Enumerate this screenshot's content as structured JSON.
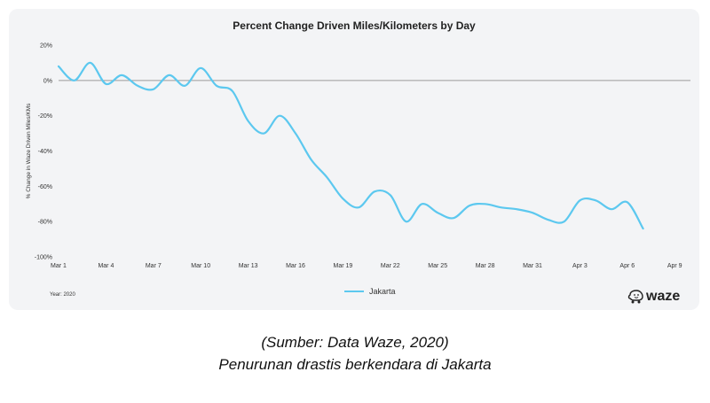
{
  "chart_data": {
    "type": "line",
    "title": "Percent Change Driven Miles/Kilometers by Day",
    "ylabel": "% Change in Waze Driven Miles/KMs",
    "xlabel": "",
    "ylim": [
      -100,
      20
    ],
    "yticks": [
      "20%",
      "0%",
      "-20%",
      "-40%",
      "-60%",
      "-80%",
      "-100%"
    ],
    "ytick_values": [
      20,
      0,
      -20,
      -40,
      -60,
      -80,
      -100
    ],
    "xticks": [
      "Mar 1",
      "Mar 4",
      "Mar 7",
      "Mar 10",
      "Mar 13",
      "Mar 16",
      "Mar 19",
      "Mar 22",
      "Mar 25",
      "Mar 28",
      "Mar 31",
      "Apr 3",
      "Apr 6",
      "Apr 9"
    ],
    "xtick_days": [
      0,
      3,
      6,
      9,
      12,
      15,
      18,
      21,
      24,
      27,
      30,
      33,
      36,
      39
    ],
    "xlim": [
      0,
      40
    ],
    "grid": false,
    "legend": "bottom-center",
    "series": [
      {
        "name": "Jakarta",
        "color": "#5cc8ef",
        "x": [
          0,
          1,
          2,
          3,
          4,
          5,
          6,
          7,
          8,
          9,
          10,
          11,
          12,
          13,
          14,
          15,
          16,
          17,
          18,
          19,
          20,
          21,
          22,
          23,
          24,
          25,
          26,
          27,
          28,
          29,
          30,
          31,
          32,
          33,
          34,
          35,
          36,
          37,
          38,
          39,
          40
        ],
        "values": [
          8,
          0,
          10,
          -2,
          3,
          -3,
          -5,
          3,
          -3,
          7,
          -3,
          -6,
          -23,
          -30,
          -20,
          -30,
          -45,
          -55,
          -67,
          -72,
          -63,
          -65,
          -80,
          -70,
          -75,
          -78,
          -71,
          -70,
          -72,
          -73,
          -75,
          -79,
          -80,
          -68,
          -68,
          -73,
          -69,
          -84,
          null,
          null,
          null
        ]
      }
    ],
    "footnote": "Year: 2020"
  },
  "legend_label": "Jakarta",
  "logo": {
    "text": "waze",
    "icon": "waze-icon"
  },
  "caption": {
    "line1": "(Sumber: Data Waze, 2020)",
    "line2": "Penurunan drastis berkendara di Jakarta"
  }
}
